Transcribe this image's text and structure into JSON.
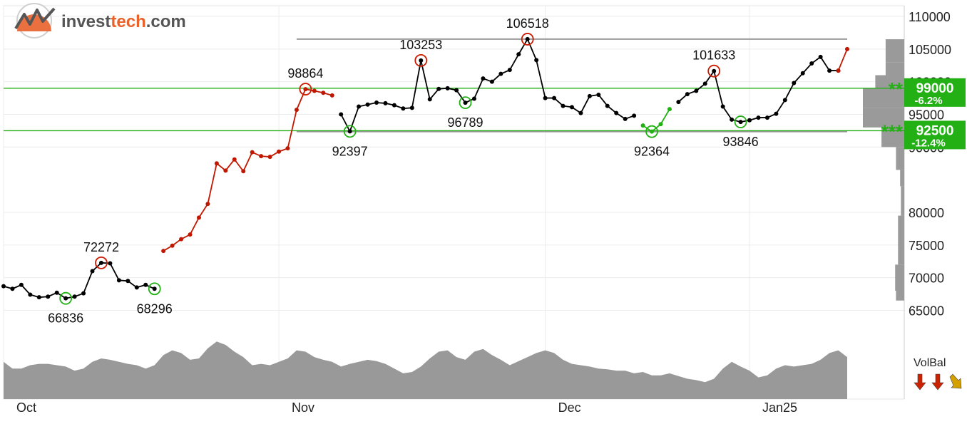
{
  "brand": {
    "name_part1": "invest",
    "name_part2": "tech",
    "name_part3": ".com",
    "color1": "#555555",
    "color2": "#e8622a"
  },
  "chart_data": {
    "type": "line",
    "title": "",
    "ylim": [
      64000,
      112000
    ],
    "y_ticks": [
      110000,
      105000,
      100000,
      95000,
      90000,
      80000,
      75000,
      70000,
      65000
    ],
    "x_tick_labels": [
      {
        "label": "Oct",
        "index": 0
      },
      {
        "label": "Nov",
        "index": 31
      },
      {
        "label": "Dec",
        "index": 61
      },
      {
        "label": "Jan25",
        "index": 84
      }
    ],
    "dates_note": "daily closes 1 Oct 2024 – 8 Jan 2025",
    "close": [
      68700,
      68300,
      68900,
      67400,
      67000,
      67100,
      67700,
      66836,
      67100,
      67600,
      71000,
      72272,
      72200,
      69600,
      69500,
      68500,
      68900,
      68296,
      74100,
      74900,
      75900,
      76600,
      79200,
      81300,
      87500,
      86400,
      88100,
      86300,
      89200,
      88600,
      88500,
      89300,
      89800,
      95700,
      98864,
      98600,
      98300,
      97900,
      95000,
      92397,
      96200,
      96500,
      96800,
      96700,
      96400,
      95900,
      96000,
      103253,
      97300,
      98900,
      99000,
      98700,
      96789,
      97400,
      100500,
      100000,
      101200,
      101800,
      104200,
      106518,
      103300,
      97500,
      97500,
      96300,
      96100,
      95200,
      97800,
      98000,
      96300,
      95200,
      94300,
      94800,
      93300,
      92364,
      93500,
      95800,
      96900,
      98100,
      98600,
      99700,
      101633,
      96200,
      94200,
      93846,
      94100,
      94500,
      94500,
      95100,
      97200,
      99800,
      101300,
      102800,
      103800,
      101700,
      101700,
      105000
    ],
    "trend_segments": [
      {
        "from": 0,
        "to": 17,
        "color": "#000000"
      },
      {
        "from": 18,
        "to": 37,
        "color": "#c01800"
      },
      {
        "from": 38,
        "to": 71,
        "color": "#000000"
      },
      {
        "from": 72,
        "to": 75,
        "color": "#22b014"
      },
      {
        "from": 76,
        "to": 94,
        "color": "#000000"
      },
      {
        "from": 94,
        "to": 95,
        "color": "#c01800"
      }
    ],
    "annotations": [
      {
        "index": 7,
        "value": 66836,
        "label": "66836",
        "kind": "low"
      },
      {
        "index": 11,
        "value": 72272,
        "label": "72272",
        "kind": "high"
      },
      {
        "index": 17,
        "value": 68296,
        "label": "68296",
        "kind": "low"
      },
      {
        "index": 34,
        "value": 98864,
        "label": "98864",
        "kind": "high"
      },
      {
        "index": 39,
        "value": 92397,
        "label": "92397",
        "kind": "low"
      },
      {
        "index": 47,
        "value": 103253,
        "label": "103253",
        "kind": "high"
      },
      {
        "index": 52,
        "value": 96789,
        "label": "96789",
        "kind": "low"
      },
      {
        "index": 59,
        "value": 106518,
        "label": "106518",
        "kind": "high"
      },
      {
        "index": 73,
        "value": 92364,
        "label": "92364",
        "kind": "low"
      },
      {
        "index": 80,
        "value": 101633,
        "label": "101633",
        "kind": "high"
      },
      {
        "index": 83,
        "value": 93846,
        "label": "93846",
        "kind": "low"
      }
    ],
    "channel_lines": [
      {
        "from_index": 33,
        "to_index": 95,
        "value": 106518,
        "color": "#999999"
      },
      {
        "from_index": 33,
        "to_index": 95,
        "value": 92364,
        "color": "#999999"
      }
    ],
    "support_resistance": [
      {
        "value": 99000,
        "label": "99000",
        "pct": "-6.2%",
        "stars": "**"
      },
      {
        "value": 92500,
        "label": "92500",
        "pct": "-12.4%",
        "stars": "***"
      }
    ],
    "volume_profile": [
      {
        "from": 103000,
        "to": 106500,
        "strength": 0.45
      },
      {
        "from": 101000,
        "to": 103000,
        "strength": 0.45
      },
      {
        "from": 99000,
        "to": 101000,
        "strength": 0.7
      },
      {
        "from": 96000,
        "to": 99000,
        "strength": 1.0
      },
      {
        "from": 93000,
        "to": 96000,
        "strength": 1.0
      },
      {
        "from": 90000,
        "to": 93000,
        "strength": 0.55
      },
      {
        "from": 86500,
        "to": 90000,
        "strength": 0.2
      },
      {
        "from": 84000,
        "to": 86500,
        "strength": 0.1
      },
      {
        "from": 79500,
        "to": 84000,
        "strength": 0.08
      },
      {
        "from": 72000,
        "to": 79500,
        "strength": 0.15
      },
      {
        "from": 68000,
        "to": 72000,
        "strength": 0.22
      },
      {
        "from": 66500,
        "to": 68000,
        "strength": 0.2
      }
    ],
    "volume_balance": [
      0.55,
      0.45,
      0.45,
      0.5,
      0.52,
      0.52,
      0.5,
      0.48,
      0.42,
      0.45,
      0.55,
      0.6,
      0.58,
      0.55,
      0.52,
      0.5,
      0.45,
      0.5,
      0.65,
      0.72,
      0.68,
      0.58,
      0.6,
      0.75,
      0.85,
      0.8,
      0.7,
      0.62,
      0.5,
      0.52,
      0.5,
      0.55,
      0.6,
      0.72,
      0.7,
      0.62,
      0.58,
      0.55,
      0.48,
      0.52,
      0.55,
      0.58,
      0.56,
      0.52,
      0.45,
      0.38,
      0.4,
      0.48,
      0.6,
      0.7,
      0.72,
      0.62,
      0.58,
      0.7,
      0.74,
      0.65,
      0.58,
      0.5,
      0.56,
      0.62,
      0.68,
      0.72,
      0.68,
      0.58,
      0.52,
      0.5,
      0.48,
      0.45,
      0.44,
      0.42,
      0.42,
      0.38,
      0.4,
      0.35,
      0.35,
      0.38,
      0.34,
      0.3,
      0.28,
      0.25,
      0.3,
      0.45,
      0.55,
      0.48,
      0.42,
      0.32,
      0.35,
      0.45,
      0.5,
      0.48,
      0.5,
      0.52,
      0.58,
      0.68,
      0.72,
      0.62
    ],
    "volume_label": "VolBal",
    "volume_arrows": [
      {
        "direction": "down",
        "color": "#cc2200"
      },
      {
        "direction": "down",
        "color": "#cc2200"
      },
      {
        "direction": "down-right",
        "color": "#d4a000"
      }
    ]
  }
}
